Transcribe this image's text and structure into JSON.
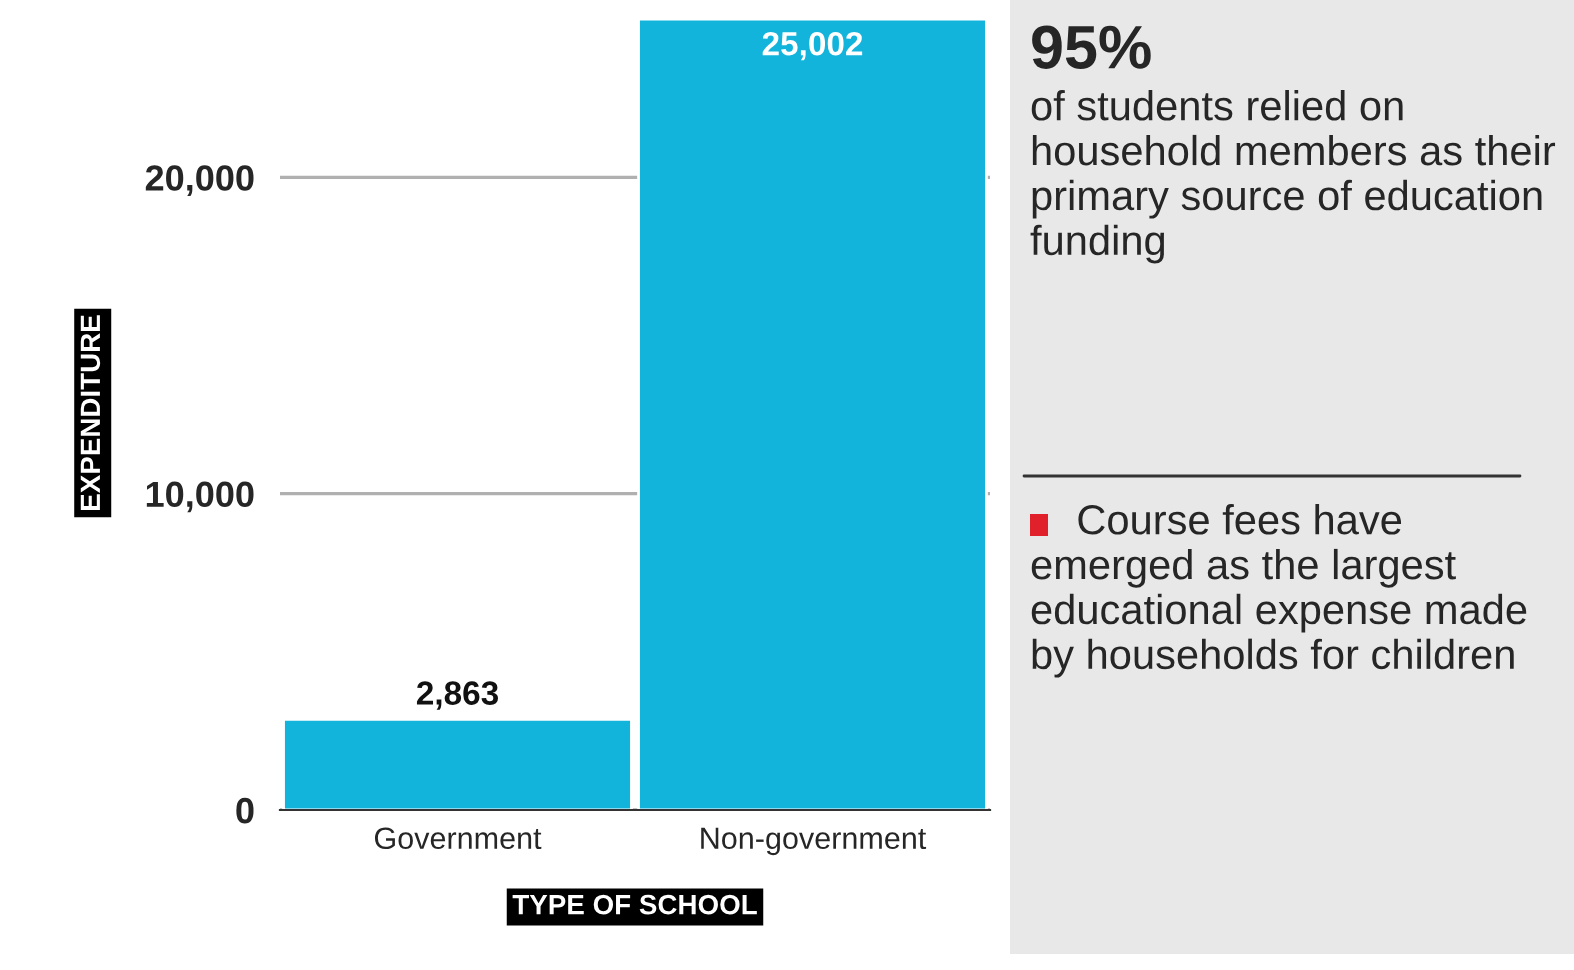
{
  "chart_data": {
    "type": "bar",
    "categories": [
      "Government",
      "Non-government"
    ],
    "values": [
      2863,
      25002
    ],
    "color": "#13b4dc",
    "ylim": [
      0,
      25100
    ],
    "yticks": [
      0,
      {
        "value": 10000,
        "label": "10,000"
      },
      {
        "value": 20000,
        "label": "20,000"
      }
    ],
    "grid": "y",
    "data_labels": true,
    "value_labels": [
      "2,863",
      "25,002"
    ],
    "xlabel": "TYPE OF SCHOOL",
    "ylabel": "EXPENDITURE",
    "annotations": [
      "95%",
      "of students relied on household members as their primary source of education funding",
      "Course fees have emerged as the largest educational expense made by households for children"
    ]
  }
}
